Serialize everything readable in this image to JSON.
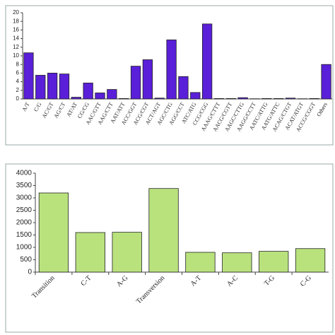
{
  "chart_data": [
    {
      "type": "bar",
      "categories": [
        "A/T",
        "C/G",
        "AC/GT",
        "AG/CT",
        "AT/AT",
        "CG/CG",
        "AAC/GTT",
        "AAG/CTT",
        "AAT/ATT",
        "ACC/GGT",
        "ACG/CGT",
        "ACT/AGT",
        "AGC/CTG",
        "AGG/CCT",
        "ATC/ATG",
        "CCG/CGG",
        "AAAG/CTTT",
        "AACG/CGTT",
        "AAGC/CTTG",
        "AAGG/CCTT",
        "AATC/ATTG",
        "AATG/ATTC",
        "ACAG/CTGT",
        "ACAT/ATGT",
        "ACCG/CGGT",
        "Others"
      ],
      "values": [
        10.7,
        5.5,
        6.0,
        5.8,
        0.4,
        3.7,
        1.4,
        2.2,
        0.1,
        7.6,
        9.1,
        0.2,
        13.7,
        5.2,
        1.5,
        17.4,
        0.1,
        0.1,
        0.3,
        0.05,
        0.1,
        0.1,
        0.2,
        0.05,
        0.1,
        8.0
      ],
      "color": "#5a1fd8",
      "ylim": [
        0,
        20
      ],
      "yticks": [
        0,
        2,
        4,
        6,
        8,
        10,
        12,
        14,
        16,
        18,
        20
      ]
    },
    {
      "type": "bar",
      "categories": [
        "Transition",
        "C-T",
        "A-G",
        "Transversion",
        "A-T",
        "A-C",
        "T-G",
        "C-G"
      ],
      "values": [
        3200,
        1600,
        1610,
        3380,
        800,
        780,
        840,
        950
      ],
      "color": "#b9e27d",
      "ylim": [
        0,
        4000
      ],
      "yticks": [
        0,
        500,
        1000,
        1500,
        2000,
        2500,
        3000,
        3500,
        4000
      ]
    }
  ]
}
